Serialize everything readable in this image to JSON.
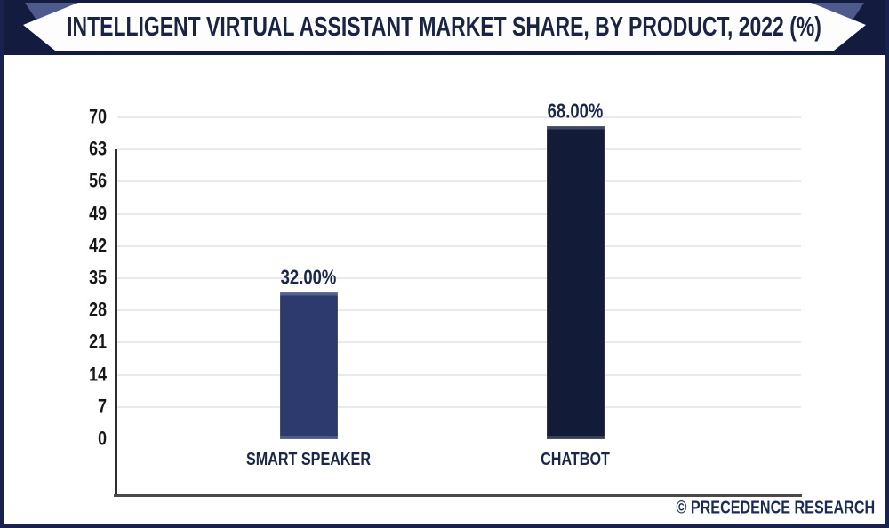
{
  "header": {
    "title": "INTELLIGENT VIRTUAL ASSISTANT MARKET SHARE, BY PRODUCT, 2022 (%)"
  },
  "footer": {
    "watermark": "© PRECEDENCE RESEARCH"
  },
  "colors": {
    "header_bg": "#131B3E",
    "header_accent": "#4E5A8C",
    "ribbon_bg": "#FDFDFD",
    "title_text": "#1A2344",
    "page_border": "#19224E",
    "background": "#FFFFFF",
    "axis_line": "#2E2E2E",
    "baseline": "#4A4A4A",
    "gridline": "#EAEAEA",
    "tick_text": "#161616",
    "label_text": "#1B2747",
    "watermark_text": "#1B2B55",
    "bar_smart_speaker": "#2C3A6E",
    "bar_chatbot": "#121B38"
  },
  "chart_data": {
    "type": "bar",
    "title": "INTELLIGENT VIRTUAL ASSISTANT MARKET SHARE, BY PRODUCT, 2022 (%)",
    "categories": [
      "SMART SPEAKER",
      "CHATBOT"
    ],
    "values": [
      32,
      68
    ],
    "value_labels": [
      "32.00%",
      "68.00%"
    ],
    "bar_colors": [
      "#2C3A6E",
      "#121B38"
    ],
    "xlabel": "",
    "ylabel": "",
    "ylim": [
      0,
      70
    ],
    "yticks": [
      0,
      7,
      14,
      21,
      28,
      35,
      42,
      49,
      56,
      63,
      70
    ],
    "grid": true,
    "legend": false
  }
}
